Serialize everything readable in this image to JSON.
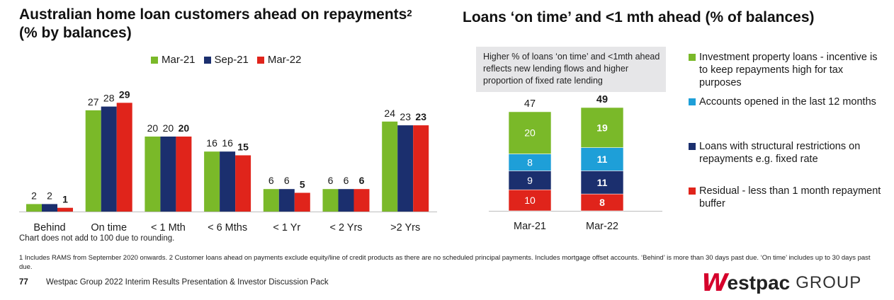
{
  "left_chart": {
    "title_line1": "Australian home loan customers ahead on repayments",
    "title_sup": "2",
    "title_line2": "(% by balances)",
    "note": "Chart does not add to 100 due to rounding."
  },
  "right_chart": {
    "title": "Loans ‘on time’ and <1 mth ahead (% of balances)",
    "callout": "Higher % of loans ‘on time’ and <1mth ahead reflects new lending flows and higher proportion of fixed rate lending"
  },
  "chart_data": [
    {
      "type": "bar",
      "title": "Australian home loan customers ahead on repayments (% by balances)",
      "categories": [
        "Behind",
        "On time",
        "< 1 Mth",
        "< 6 Mths",
        "< 1 Yr",
        "< 2 Yrs",
        ">2 Yrs"
      ],
      "series": [
        {
          "name": "Mar-21",
          "color": "#7ab929",
          "values": [
            2,
            27,
            20,
            16,
            6,
            6,
            24
          ]
        },
        {
          "name": "Sep-21",
          "color": "#1b2f6e",
          "values": [
            2,
            28,
            20,
            16,
            6,
            6,
            23
          ]
        },
        {
          "name": "Mar-22",
          "color": "#e0241b",
          "values": [
            1,
            29,
            20,
            15,
            5,
            6,
            23
          ]
        }
      ],
      "bold_series": "Mar-22",
      "xlabel": "",
      "ylabel": "",
      "grid": false
    },
    {
      "type": "bar",
      "stacked": true,
      "title": "Loans ‘on time’ and <1 mth ahead (% of balances)",
      "categories": [
        "Mar-21",
        "Mar-22"
      ],
      "totals": [
        47,
        49
      ],
      "series": [
        {
          "name": "Residual - less than 1 month repayment buffer",
          "color": "#e0241b",
          "values": [
            10,
            8
          ]
        },
        {
          "name": "Loans with structural restrictions on repayments e.g. fixed rate",
          "color": "#1b2f6e",
          "values": [
            9,
            11
          ]
        },
        {
          "name": "Accounts opened in the last 12 months",
          "color": "#1e9fd8",
          "values": [
            8,
            11
          ]
        },
        {
          "name": "Investment property loans - incentive is to keep repayments high for tax purposes",
          "color": "#7ab929",
          "values": [
            20,
            19
          ]
        }
      ],
      "bold_category": "Mar-22"
    }
  ],
  "footer": {
    "footnote": "1 Includes RAMS from September 2020 onwards. 2 Customer loans ahead on payments exclude equity/line of credit products as there are no scheduled principal payments. Includes mortgage offset accounts. ‘Behind’ is more than 30 days past due. ‘On time’ includes up to 30 days past due.",
    "page_number": "77",
    "page_title": "Westpac Group 2022 Interim Results Presentation & Investor Discussion Pack",
    "logo_w": "W",
    "logo_estpac": "estpac",
    "logo_group": "GROUP"
  }
}
